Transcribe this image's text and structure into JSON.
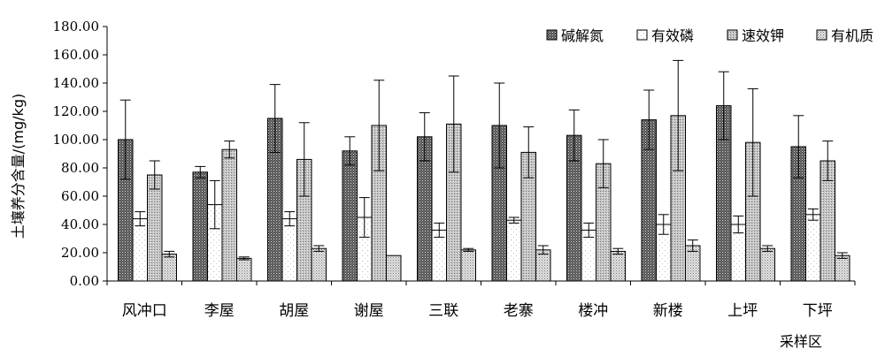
{
  "chart_data": {
    "type": "bar",
    "ylabel": "土壤养分含量/(mg/kg)",
    "xlabel": "采样区",
    "ylim": [
      0,
      180
    ],
    "yticks": [
      "0.00",
      "20.00",
      "40.00",
      "60.00",
      "80.00",
      "100.00",
      "120.00",
      "140.00",
      "160.00",
      "180.00"
    ],
    "legend_position": "top-right",
    "categories": [
      "风冲口",
      "李屋",
      "胡屋",
      "谢屋",
      "三联",
      "老寨",
      "楼冲",
      "新楼",
      "上坪",
      "下坪"
    ],
    "series": [
      {
        "name": "碱解氮",
        "pattern": "dark-dots",
        "values": [
          100,
          77,
          115,
          92,
          102,
          110,
          103,
          114,
          124,
          95
        ],
        "errors": [
          28,
          4,
          24,
          10,
          17,
          30,
          18,
          21,
          24,
          22
        ]
      },
      {
        "name": "有效磷",
        "pattern": "white-sparse",
        "values": [
          44,
          54,
          44,
          45,
          36,
          43,
          36,
          40,
          40,
          47
        ],
        "errors": [
          5,
          17,
          5,
          14,
          5,
          2,
          5,
          7,
          6,
          4
        ]
      },
      {
        "name": "速效钾",
        "pattern": "medium-dots",
        "values": [
          75,
          93,
          86,
          110,
          111,
          91,
          83,
          117,
          98,
          85
        ],
        "errors": [
          10,
          6,
          26,
          32,
          34,
          18,
          17,
          39,
          38,
          14
        ]
      },
      {
        "name": "有机质",
        "pattern": "fine-dots",
        "values": [
          19,
          16,
          23,
          18,
          22,
          22,
          21,
          25,
          23,
          18
        ],
        "errors": [
          2,
          1,
          2,
          0,
          1,
          3,
          2,
          4,
          2,
          2
        ]
      }
    ]
  }
}
